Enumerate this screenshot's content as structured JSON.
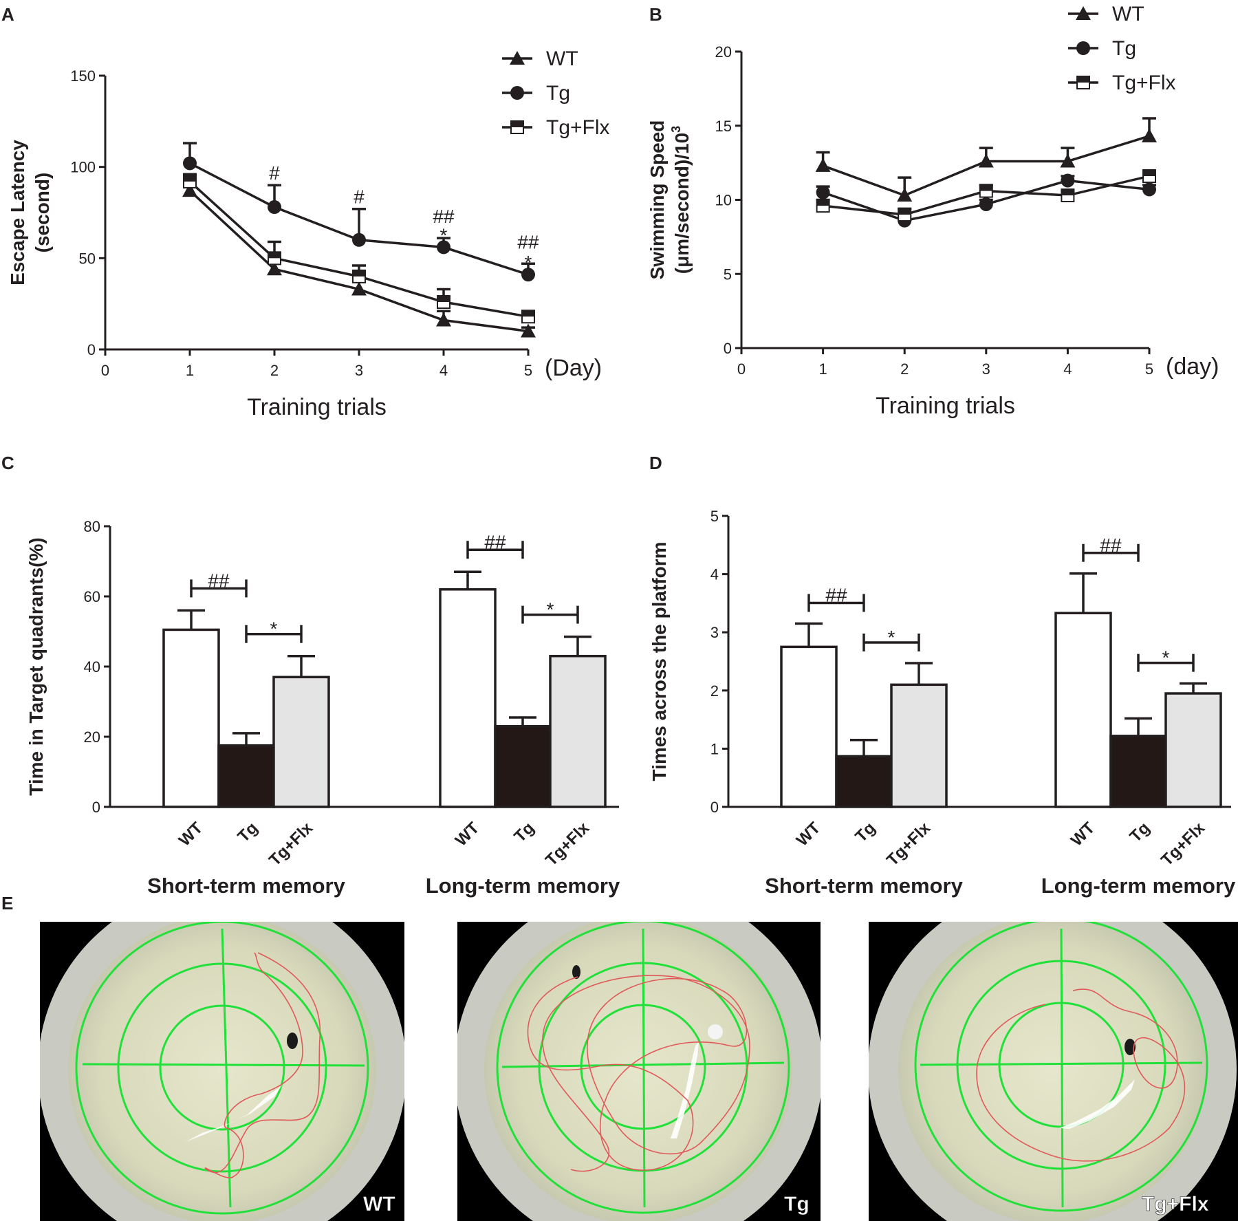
{
  "panels": {
    "a": "A",
    "b": "B",
    "c": "C",
    "d": "D",
    "e": "E"
  },
  "chart_data": [
    {
      "id": "A",
      "type": "line",
      "title": "",
      "xlabel": "Training trials",
      "x_unit_label": "(Day)",
      "ylabel_line1": "Escape Latency",
      "ylabel_line2": "(second)",
      "xlim": [
        0,
        5
      ],
      "ylim": [
        0,
        150
      ],
      "x_ticks": [
        "0",
        "1",
        "2",
        "3",
        "4",
        "5"
      ],
      "y_ticks": [
        "0",
        "50",
        "100",
        "150"
      ],
      "x": [
        1,
        2,
        3,
        4,
        5
      ],
      "series": [
        {
          "name": "WT",
          "marker": "triangle",
          "values": [
            87,
            44,
            33,
            16,
            10
          ],
          "errors": [
            6,
            9,
            6,
            5,
            2
          ]
        },
        {
          "name": "Tg",
          "marker": "circle",
          "values": [
            102,
            78,
            60,
            56,
            41
          ],
          "errors": [
            11,
            12,
            17,
            5,
            6
          ]
        },
        {
          "name": "Tg+Flx",
          "marker": "square-half",
          "values": [
            92,
            50,
            40,
            26,
            18
          ],
          "errors": [
            4,
            9,
            6,
            7,
            3
          ]
        }
      ],
      "annotations": [
        {
          "x": 2,
          "text": "#"
        },
        {
          "x": 3,
          "text": "#"
        },
        {
          "x": 4,
          "text": "##"
        },
        {
          "x": 4,
          "text": "*"
        },
        {
          "x": 5,
          "text": "##"
        },
        {
          "x": 5,
          "text": "*"
        }
      ],
      "legend": "top-right"
    },
    {
      "id": "B",
      "type": "line",
      "title": "",
      "xlabel": "Training trials",
      "x_unit_label": "(day)",
      "ylabel_line1": "Swimming Speed",
      "ylabel_line2": "(μm/second)/10",
      "ylabel_sup": "3",
      "xlim": [
        0,
        5
      ],
      "ylim": [
        0,
        20
      ],
      "x_ticks": [
        "0",
        "1",
        "2",
        "3",
        "4",
        "5"
      ],
      "y_ticks": [
        "0",
        "5",
        "10",
        "15",
        "20"
      ],
      "x": [
        1,
        2,
        3,
        4,
        5
      ],
      "series": [
        {
          "name": "WT",
          "marker": "triangle",
          "values": [
            12.3,
            10.3,
            12.6,
            12.6,
            14.3
          ],
          "errors": [
            0.9,
            1.2,
            0.9,
            0.9,
            1.2
          ]
        },
        {
          "name": "Tg",
          "marker": "circle",
          "values": [
            10.5,
            8.6,
            9.7,
            11.3,
            10.7
          ],
          "errors": [
            0.4,
            0.3,
            0.3,
            0.3,
            0.3
          ]
        },
        {
          "name": "Tg+Flx",
          "marker": "square-half",
          "values": [
            9.6,
            9.0,
            10.6,
            10.3,
            11.6
          ],
          "errors": [
            0.4,
            0.4,
            0.4,
            0.3,
            0.3
          ]
        }
      ],
      "legend": "top-right"
    },
    {
      "id": "C",
      "type": "bar",
      "ylabel": "Time in Target quadrants(%)",
      "ylim": [
        0,
        80
      ],
      "y_ticks": [
        "0",
        "20",
        "40",
        "60",
        "80"
      ],
      "groups": [
        {
          "name": "Short-term memory",
          "categories": [
            "WT",
            "Tg",
            "Tg+Flx"
          ],
          "values": [
            50.5,
            17.5,
            37
          ],
          "errors": [
            5.5,
            3.5,
            6
          ]
        },
        {
          "name": "Long-term memory",
          "categories": [
            "WT",
            "Tg",
            "Tg+Flx"
          ],
          "values": [
            62,
            23,
            43
          ],
          "errors": [
            5,
            2.5,
            5.5
          ]
        }
      ],
      "bar_colors": [
        "#ffffff",
        "#231815",
        "#e4e4e4"
      ],
      "significance": [
        {
          "group": 0,
          "pair": [
            0,
            1
          ],
          "text": "##"
        },
        {
          "group": 0,
          "pair": [
            1,
            2
          ],
          "text": "*"
        },
        {
          "group": 1,
          "pair": [
            0,
            1
          ],
          "text": "##"
        },
        {
          "group": 1,
          "pair": [
            1,
            2
          ],
          "text": "*"
        }
      ]
    },
    {
      "id": "D",
      "type": "bar",
      "ylabel": "Times across the platform",
      "ylim": [
        0,
        5
      ],
      "y_ticks": [
        "0",
        "1",
        "2",
        "3",
        "4",
        "5"
      ],
      "groups": [
        {
          "name": "Short-term memory",
          "categories": [
            "WT",
            "Tg",
            "Tg+Flx"
          ],
          "values": [
            2.75,
            0.87,
            2.1
          ],
          "errors": [
            0.4,
            0.28,
            0.37
          ]
        },
        {
          "name": "Long-term memory",
          "categories": [
            "WT",
            "Tg",
            "Tg+Flx"
          ],
          "values": [
            3.33,
            1.22,
            1.95
          ],
          "errors": [
            0.68,
            0.3,
            0.17
          ]
        }
      ],
      "bar_colors": [
        "#ffffff",
        "#231815",
        "#e4e4e4"
      ],
      "significance": [
        {
          "group": 0,
          "pair": [
            0,
            1
          ],
          "text": "##"
        },
        {
          "group": 0,
          "pair": [
            1,
            2
          ],
          "text": "*"
        },
        {
          "group": 1,
          "pair": [
            0,
            1
          ],
          "text": "##"
        },
        {
          "group": 1,
          "pair": [
            1,
            2
          ],
          "text": "*"
        }
      ]
    }
  ],
  "swim_paths": {
    "images": [
      {
        "label": "WT"
      },
      {
        "label": "Tg"
      },
      {
        "label": "Tg+Flx"
      }
    ]
  },
  "colors": {
    "ink": "#231f20",
    "grid_green": "#22e03a",
    "track_red": "#e05a5a",
    "pool_water": "#dcdcbd",
    "pool_rim": "#c9cbc3"
  }
}
